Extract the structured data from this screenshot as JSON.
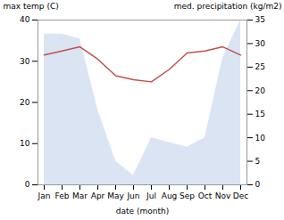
{
  "chart_data": {
    "type": "line",
    "categories": [
      "Jan",
      "Feb",
      "Mar",
      "Apr",
      "May",
      "Jun",
      "Jul",
      "Aug",
      "Sep",
      "Oct",
      "Nov",
      "Dec"
    ],
    "series": [
      {
        "type": "line",
        "color": "#c0504d",
        "values": [
          31.5,
          32.5,
          33.5,
          30.5,
          26.5,
          25.5,
          25.0,
          28.0,
          32.0,
          32.5,
          33.5,
          31.5
        ]
      },
      {
        "type": "area",
        "axis": "y2",
        "color": "#b8c9e8",
        "values": [
          32,
          32,
          31,
          16,
          5,
          2,
          10,
          9,
          8,
          10,
          27,
          35
        ]
      }
    ],
    "xlabel": "date (month)",
    "ylabel": "max temp (C)",
    "y2label": "med. precipitation (kg/m2)",
    "ylim": [
      0,
      40
    ],
    "yticks": [
      0,
      10,
      20,
      30,
      40
    ],
    "y2lim": [
      0,
      35
    ],
    "y2ticks": [
      0,
      5,
      10,
      15,
      20,
      25,
      30,
      35
    ],
    "grid": false
  }
}
